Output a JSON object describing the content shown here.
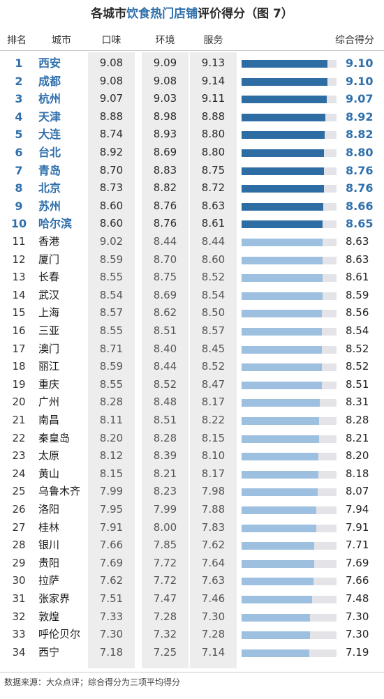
{
  "chart_data": {
    "type": "table",
    "title_prefix": "各城市",
    "title_highlight": "饮食热门店铺",
    "title_suffix": "评价得分（图 7）",
    "columns": [
      "排名",
      "城市",
      "口味",
      "环境",
      "服务",
      "综合得分"
    ],
    "bar_range": [
      0,
      10
    ],
    "colors": {
      "top": "#2e6ca4",
      "rest": "#9dbfe0",
      "track": "#e4e4e8",
      "accent_text": "#2f6fab"
    },
    "rows": [
      {
        "rank": "1",
        "city": "西安",
        "taste": "9.08",
        "env": "9.09",
        "service": "9.13",
        "overall": "9.10",
        "value": 9.1
      },
      {
        "rank": "2",
        "city": "成都",
        "taste": "9.08",
        "env": "9.08",
        "service": "9.14",
        "overall": "9.10",
        "value": 9.1
      },
      {
        "rank": "3",
        "city": "杭州",
        "taste": "9.07",
        "env": "9.03",
        "service": "9.11",
        "overall": "9.07",
        "value": 9.07
      },
      {
        "rank": "4",
        "city": "天津",
        "taste": "8.88",
        "env": "8.98",
        "service": "8.88",
        "overall": "8.92",
        "value": 8.92
      },
      {
        "rank": "5",
        "city": "大连",
        "taste": "8.74",
        "env": "8.93",
        "service": "8.80",
        "overall": "8.82",
        "value": 8.82
      },
      {
        "rank": "6",
        "city": "台北",
        "taste": "8.92",
        "env": "8.69",
        "service": "8.80",
        "overall": "8.80",
        "value": 8.8
      },
      {
        "rank": "7",
        "city": "青岛",
        "taste": "8.70",
        "env": "8.83",
        "service": "8.75",
        "overall": "8.76",
        "value": 8.76
      },
      {
        "rank": "8",
        "city": "北京",
        "taste": "8.73",
        "env": "8.82",
        "service": "8.72",
        "overall": "8.76",
        "value": 8.76
      },
      {
        "rank": "9",
        "city": "苏州",
        "taste": "8.60",
        "env": "8.76",
        "service": "8.63",
        "overall": "8.66",
        "value": 8.66
      },
      {
        "rank": "10",
        "city": "哈尔滨",
        "taste": "8.60",
        "env": "8.76",
        "service": "8.61",
        "overall": "8.65",
        "value": 8.65
      },
      {
        "rank": "11",
        "city": "香港",
        "taste": "9.02",
        "env": "8.44",
        "service": "8.44",
        "overall": "8.63",
        "value": 8.63
      },
      {
        "rank": "12",
        "city": "厦门",
        "taste": "8.59",
        "env": "8.70",
        "service": "8.60",
        "overall": "8.63",
        "value": 8.63
      },
      {
        "rank": "13",
        "city": "长春",
        "taste": "8.55",
        "env": "8.75",
        "service": "8.52",
        "overall": "8.61",
        "value": 8.61
      },
      {
        "rank": "14",
        "city": "武汉",
        "taste": "8.54",
        "env": "8.69",
        "service": "8.54",
        "overall": "8.59",
        "value": 8.59
      },
      {
        "rank": "15",
        "city": "上海",
        "taste": "8.57",
        "env": "8.62",
        "service": "8.50",
        "overall": "8.56",
        "value": 8.56
      },
      {
        "rank": "16",
        "city": "三亚",
        "taste": "8.55",
        "env": "8.51",
        "service": "8.57",
        "overall": "8.54",
        "value": 8.54
      },
      {
        "rank": "17",
        "city": "澳门",
        "taste": "8.71",
        "env": "8.40",
        "service": "8.45",
        "overall": "8.52",
        "value": 8.52
      },
      {
        "rank": "18",
        "city": "丽江",
        "taste": "8.59",
        "env": "8.44",
        "service": "8.52",
        "overall": "8.52",
        "value": 8.52
      },
      {
        "rank": "19",
        "city": "重庆",
        "taste": "8.55",
        "env": "8.52",
        "service": "8.47",
        "overall": "8.51",
        "value": 8.51
      },
      {
        "rank": "20",
        "city": "广州",
        "taste": "8.28",
        "env": "8.48",
        "service": "8.17",
        "overall": "8.31",
        "value": 8.31
      },
      {
        "rank": "21",
        "city": "南昌",
        "taste": "8.11",
        "env": "8.51",
        "service": "8.22",
        "overall": "8.28",
        "value": 8.28
      },
      {
        "rank": "22",
        "city": "秦皇岛",
        "taste": "8.20",
        "env": "8.28",
        "service": "8.15",
        "overall": "8.21",
        "value": 8.21
      },
      {
        "rank": "23",
        "city": "太原",
        "taste": "8.12",
        "env": "8.39",
        "service": "8.10",
        "overall": "8.20",
        "value": 8.2
      },
      {
        "rank": "24",
        "city": "黄山",
        "taste": "8.15",
        "env": "8.21",
        "service": "8.17",
        "overall": "8.18",
        "value": 8.18
      },
      {
        "rank": "25",
        "city": "乌鲁木齐",
        "taste": "7.99",
        "env": "8.23",
        "service": "7.98",
        "overall": "8.07",
        "value": 8.07
      },
      {
        "rank": "26",
        "city": "洛阳",
        "taste": "7.95",
        "env": "7.99",
        "service": "7.88",
        "overall": "7.94",
        "value": 7.94
      },
      {
        "rank": "27",
        "city": "桂林",
        "taste": "7.91",
        "env": "8.00",
        "service": "7.83",
        "overall": "7.91",
        "value": 7.91
      },
      {
        "rank": "28",
        "city": "银川",
        "taste": "7.66",
        "env": "7.85",
        "service": "7.62",
        "overall": "7.71",
        "value": 7.71
      },
      {
        "rank": "29",
        "city": "贵阳",
        "taste": "7.69",
        "env": "7.72",
        "service": "7.64",
        "overall": "7.69",
        "value": 7.69
      },
      {
        "rank": "30",
        "city": "拉萨",
        "taste": "7.62",
        "env": "7.72",
        "service": "7.63",
        "overall": "7.66",
        "value": 7.66
      },
      {
        "rank": "31",
        "city": "张家界",
        "taste": "7.51",
        "env": "7.47",
        "service": "7.46",
        "overall": "7.48",
        "value": 7.48
      },
      {
        "rank": "32",
        "city": "敦煌",
        "taste": "7.33",
        "env": "7.28",
        "service": "7.30",
        "overall": "7.30",
        "value": 7.3
      },
      {
        "rank": "33",
        "city": "呼伦贝尔",
        "taste": "7.30",
        "env": "7.32",
        "service": "7.28",
        "overall": "7.30",
        "value": 7.3
      },
      {
        "rank": "34",
        "city": "西宁",
        "taste": "7.18",
        "env": "7.25",
        "service": "7.14",
        "overall": "7.19",
        "value": 7.19
      }
    ],
    "source": "数据来源：大众点评；综合得分为三项平均得分"
  }
}
